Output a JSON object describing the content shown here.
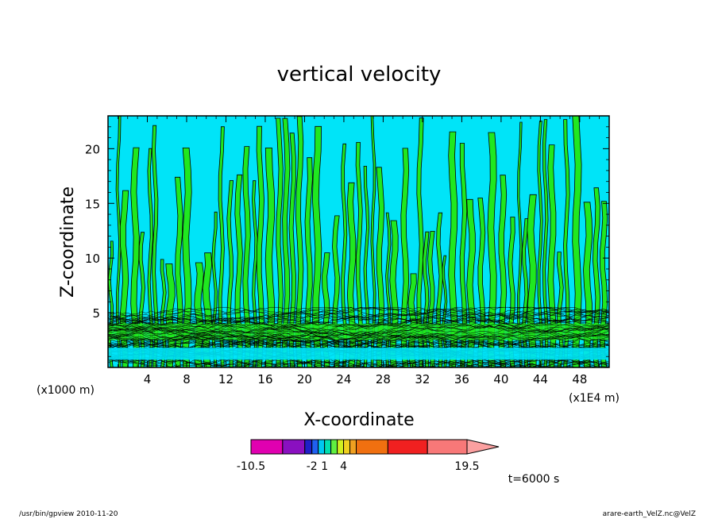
{
  "chart_data": {
    "type": "heatmap",
    "title": "vertical velocity",
    "xlabel": "X-coordinate",
    "ylabel": "Z-coordinate",
    "x_unit_left": "(x1000 m)",
    "x_unit_right": "(x1E4 m)",
    "xlim": [
      0,
      51
    ],
    "ylim": [
      0,
      23
    ],
    "x_ticks": [
      4,
      8,
      12,
      16,
      20,
      24,
      28,
      32,
      36,
      40,
      44,
      48
    ],
    "y_ticks": [
      5,
      10,
      15,
      20
    ],
    "grid": false,
    "colorbar": {
      "colors": [
        "#e000b0",
        "#8a10c0",
        "#2020c8",
        "#2060f0",
        "#00c8f0",
        "#00e0b0",
        "#60f040",
        "#d0f020",
        "#f0d020",
        "#f0a020",
        "#f07010",
        "#f02020",
        "#f87878",
        "#fba0a0"
      ],
      "labels": [
        "-10.5",
        "-2",
        "1",
        "4",
        "19.5"
      ],
      "extend": "max"
    },
    "fill_colors": {
      "negative": "#00e4f8",
      "positive": "#20e820",
      "contour_line": "#000000"
    },
    "annotation": "t=6000 s"
  },
  "footer": {
    "left": "/usr/bin/gpview  2010-11-20",
    "right": "arare-earth_VelZ.nc@VelZ"
  }
}
